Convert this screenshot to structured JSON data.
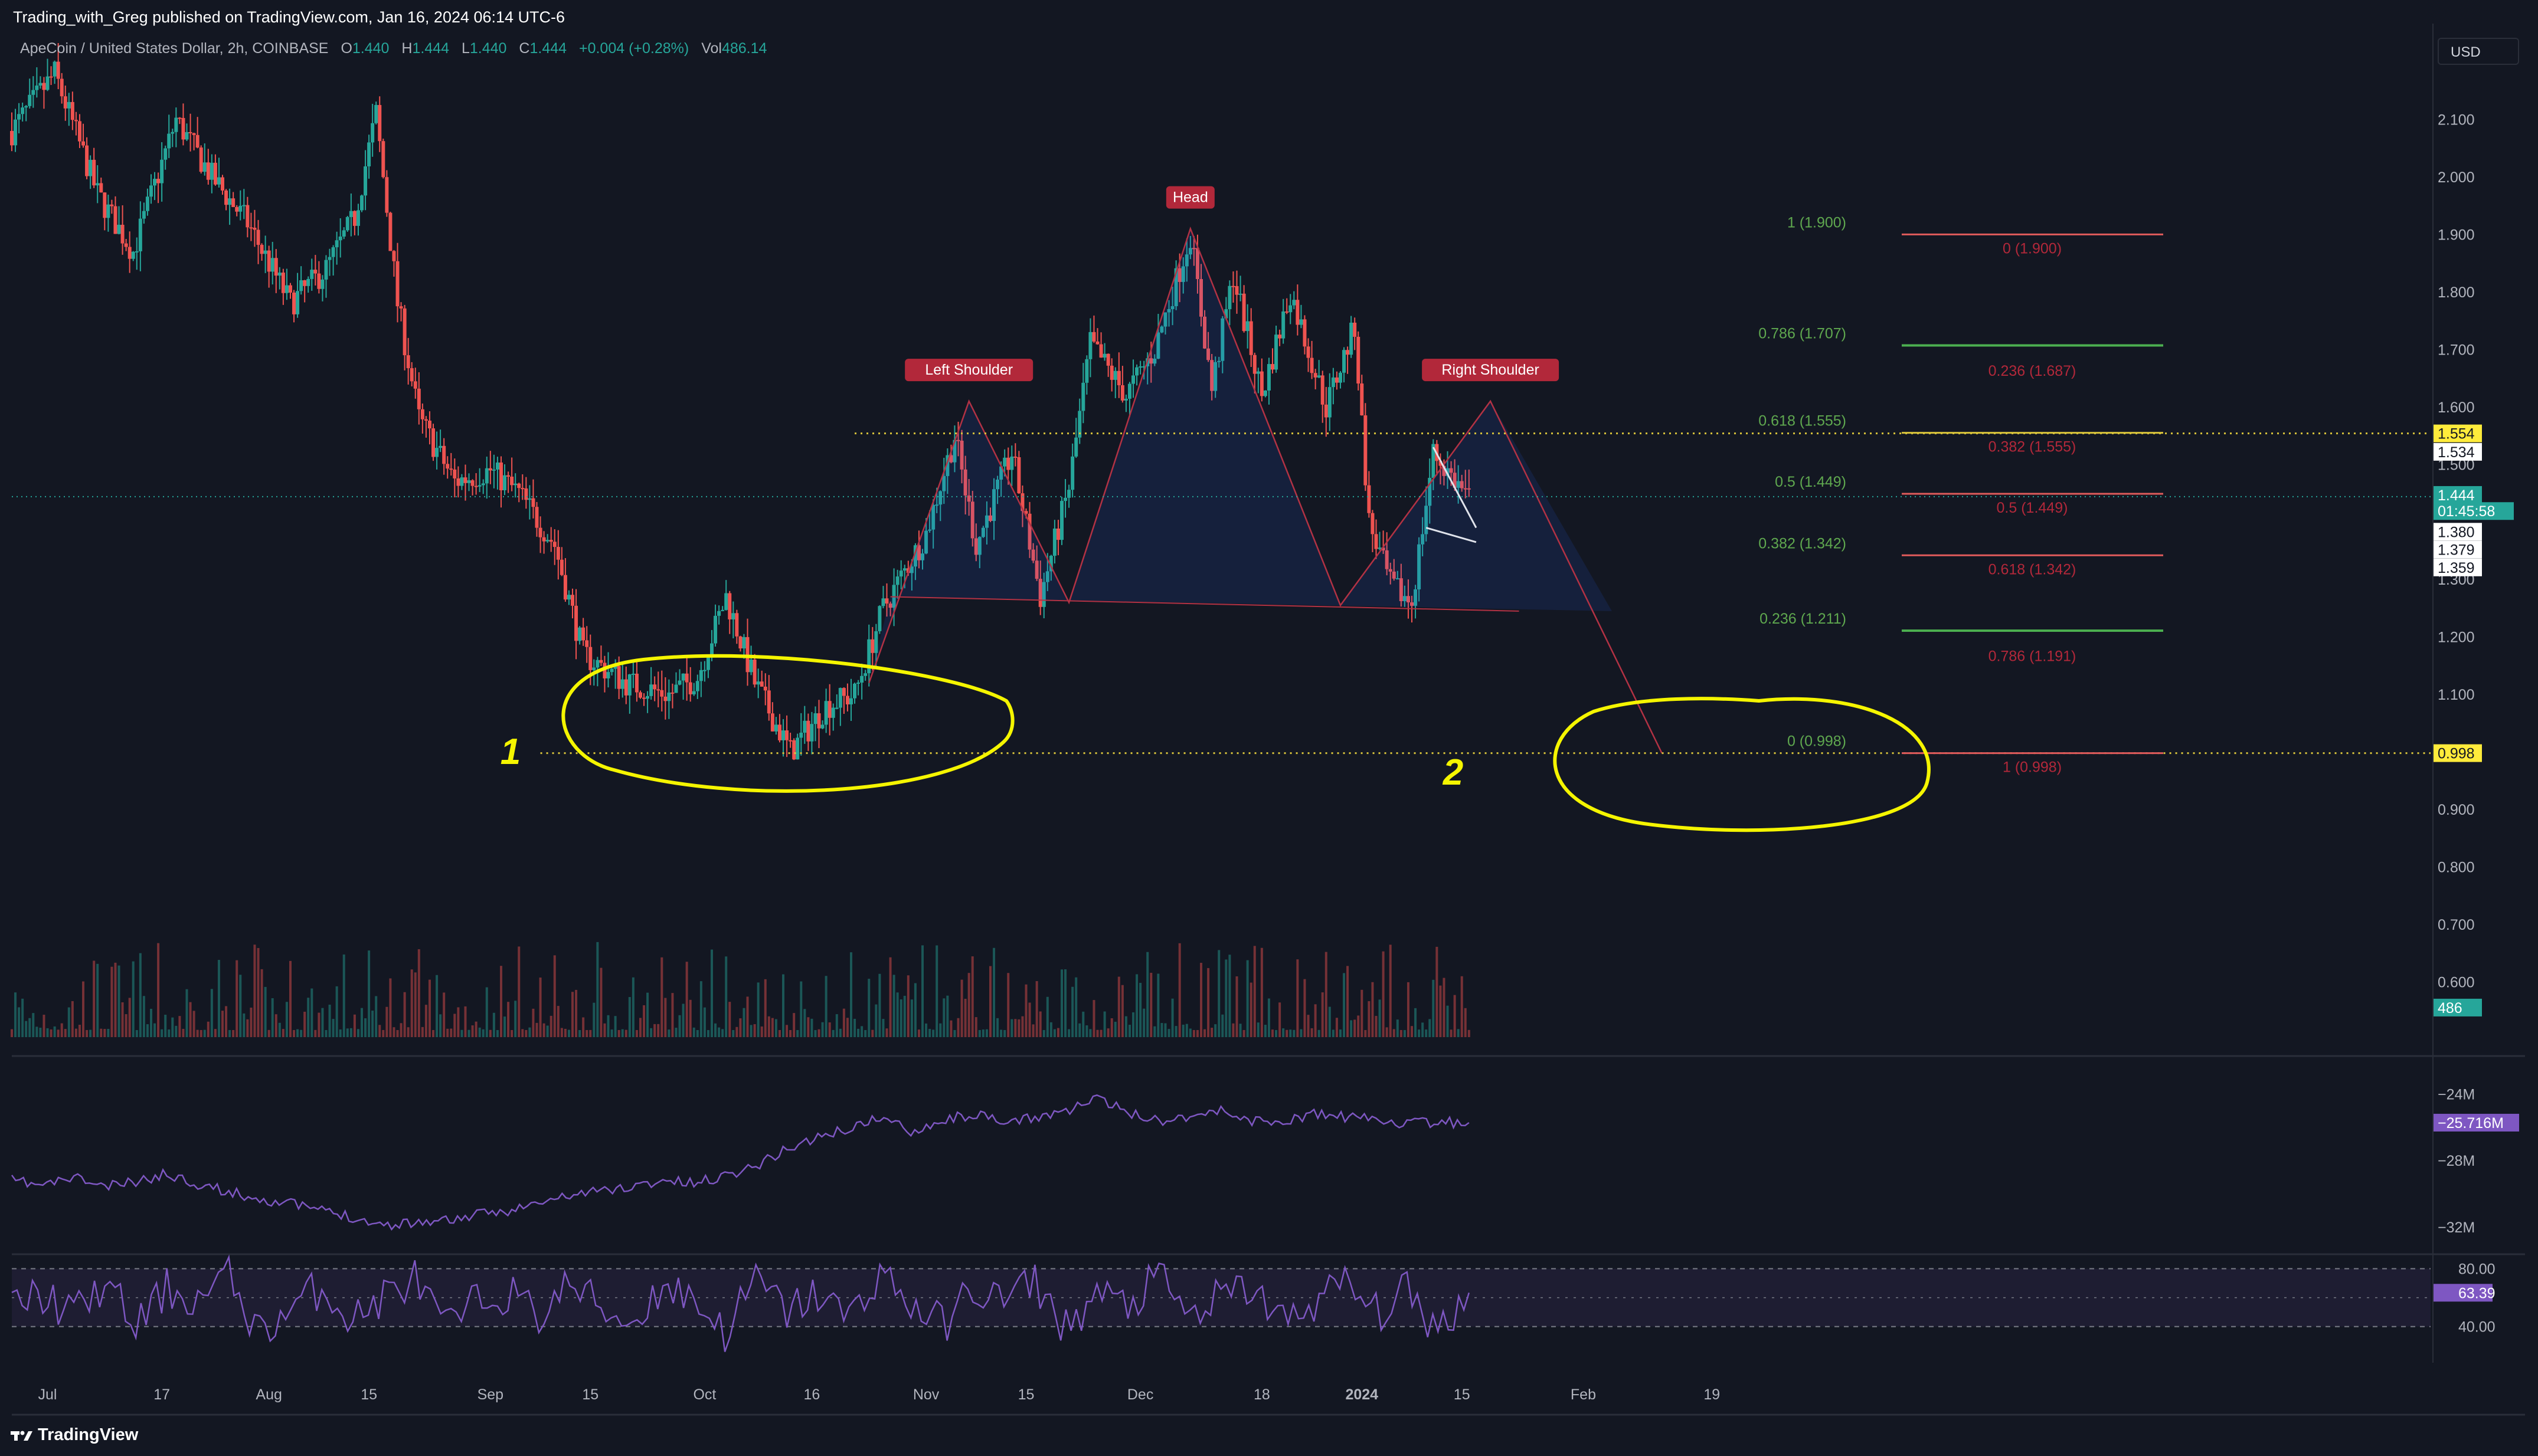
{
  "header": {
    "publisher_line": "Trading_with_Greg published on TradingView.com, Jan 16, 2024 06:14 UTC-6"
  },
  "legend": {
    "symbol": "ApeCoin / United States Dollar, 2h, COINBASE",
    "o_label": "O",
    "o_value": "1.440",
    "h_label": "H",
    "h_value": "1.444",
    "l_label": "L",
    "l_value": "1.440",
    "c_label": "C",
    "c_value": "1.444",
    "change": "+0.004 (+0.28%)",
    "vol_label": "Vol",
    "vol_value": "486.14"
  },
  "currency_button": "USD",
  "brand": "TradingView",
  "colors": {
    "background": "#131722",
    "up": "#26a69a",
    "down": "#ef5350",
    "indicator": "#7e57c2",
    "annotation": "#f5f500",
    "pattern_line": "#b23244",
    "fib_green": "#4caf50",
    "fib_red": "#e05b5b"
  },
  "chart_data": [
    {
      "type": "candlestick",
      "title": "ApeCoin / United States Dollar, 2h, COINBASE",
      "ylim": [
        0.5,
        2.2
      ],
      "y_ticks": [
        "2.100",
        "2.000",
        "1.900",
        "1.800",
        "1.700",
        "1.600",
        "1.500",
        "1.300",
        "1.200",
        "1.100",
        "0.900",
        "0.800",
        "0.700",
        "0.600"
      ],
      "x_ticks": [
        "Jul",
        "17",
        "Aug",
        "15",
        "Sep",
        "15",
        "Oct",
        "16",
        "Nov",
        "15",
        "Dec",
        "18",
        "2024",
        "15",
        "Feb",
        "19"
      ],
      "x_tick_dates": [
        "2023-07-01",
        "2023-07-17",
        "2023-08-01",
        "2023-08-15",
        "2023-09-01",
        "2023-09-15",
        "2023-10-01",
        "2023-10-16",
        "2023-11-01",
        "2023-11-15",
        "2023-12-01",
        "2023-12-18",
        "2024-01-01",
        "2024-01-15",
        "2024-02-01",
        "2024-02-19"
      ],
      "price_path": [
        {
          "date": "2023-06-26",
          "price": 2.08
        },
        {
          "date": "2023-07-02",
          "price": 2.18
        },
        {
          "date": "2023-07-08",
          "price": 1.97
        },
        {
          "date": "2023-07-13",
          "price": 1.87
        },
        {
          "date": "2023-07-19",
          "price": 2.1
        },
        {
          "date": "2023-07-24",
          "price": 2.0
        },
        {
          "date": "2023-07-29",
          "price": 1.92
        },
        {
          "date": "2023-08-04",
          "price": 1.78
        },
        {
          "date": "2023-08-09",
          "price": 1.84
        },
        {
          "date": "2023-08-13",
          "price": 1.93
        },
        {
          "date": "2023-08-16",
          "price": 2.11
        },
        {
          "date": "2023-08-19",
          "price": 1.78
        },
        {
          "date": "2023-08-22",
          "price": 1.58
        },
        {
          "date": "2023-08-27",
          "price": 1.47
        },
        {
          "date": "2023-09-01",
          "price": 1.49
        },
        {
          "date": "2023-09-05",
          "price": 1.45
        },
        {
          "date": "2023-09-10",
          "price": 1.36
        },
        {
          "date": "2023-09-14",
          "price": 1.17
        },
        {
          "date": "2023-09-20",
          "price": 1.12
        },
        {
          "date": "2023-09-26",
          "price": 1.1
        },
        {
          "date": "2023-09-30",
          "price": 1.13
        },
        {
          "date": "2023-10-04",
          "price": 1.27
        },
        {
          "date": "2023-10-08",
          "price": 1.12
        },
        {
          "date": "2023-10-13",
          "price": 1.0
        },
        {
          "date": "2023-10-18",
          "price": 1.08
        },
        {
          "date": "2023-10-22",
          "price": 1.1
        },
        {
          "date": "2023-10-26",
          "price": 1.25
        },
        {
          "date": "2023-11-01",
          "price": 1.38
        },
        {
          "date": "2023-11-05",
          "price": 1.55
        },
        {
          "date": "2023-11-08",
          "price": 1.36
        },
        {
          "date": "2023-11-13",
          "price": 1.52
        },
        {
          "date": "2023-11-17",
          "price": 1.27
        },
        {
          "date": "2023-11-21",
          "price": 1.46
        },
        {
          "date": "2023-11-24",
          "price": 1.71
        },
        {
          "date": "2023-11-29",
          "price": 1.62
        },
        {
          "date": "2023-12-03",
          "price": 1.7
        },
        {
          "date": "2023-12-08",
          "price": 1.9
        },
        {
          "date": "2023-12-11",
          "price": 1.63
        },
        {
          "date": "2023-12-14",
          "price": 1.83
        },
        {
          "date": "2023-12-18",
          "price": 1.62
        },
        {
          "date": "2023-12-22",
          "price": 1.8
        },
        {
          "date": "2023-12-27",
          "price": 1.6
        },
        {
          "date": "2023-12-31",
          "price": 1.74
        },
        {
          "date": "2024-01-02",
          "price": 1.4
        },
        {
          "date": "2024-01-05",
          "price": 1.29
        },
        {
          "date": "2024-01-08",
          "price": 1.26
        },
        {
          "date": "2024-01-11",
          "price": 1.52
        },
        {
          "date": "2024-01-16",
          "price": 1.44
        }
      ],
      "price_labels": [
        {
          "text": "1.554",
          "price": 1.554,
          "style": "yellow"
        },
        {
          "text": "1.534",
          "price": 1.522,
          "style": "white"
        },
        {
          "text": "1.444",
          "price": 1.447,
          "style": "green"
        },
        {
          "text": "01:45:58",
          "price": 1.419,
          "style": "green"
        },
        {
          "text": "1.380",
          "price": 1.383,
          "style": "white"
        },
        {
          "text": "1.379",
          "price": 1.352,
          "style": "white"
        },
        {
          "text": "1.359",
          "price": 1.321,
          "style": "white"
        },
        {
          "text": "0.998",
          "price": 0.998,
          "style": "yellow"
        },
        {
          "text": "486",
          "price": 0.5555,
          "style": "green"
        }
      ],
      "pattern": {
        "labels": [
          "Left Shoulder",
          "Head",
          "Right Shoulder"
        ],
        "points": [
          {
            "date": "2023-10-24",
            "price": 1.12
          },
          {
            "date": "2023-11-07",
            "price": 1.61
          },
          {
            "date": "2023-11-21",
            "price": 1.26
          },
          {
            "date": "2023-12-08",
            "price": 1.91
          },
          {
            "date": "2023-12-29",
            "price": 1.255
          },
          {
            "date": "2024-01-19",
            "price": 1.61
          },
          {
            "date": "2024-02-12",
            "price": 0.998
          }
        ],
        "neckline": [
          {
            "date": "2023-10-27",
            "price": 1.27
          },
          {
            "date": "2024-01-23",
            "price": 1.245
          }
        ]
      },
      "fib_left": [
        {
          "label": "1 (1.900)",
          "price": 1.9,
          "color": "red"
        },
        {
          "label": "0.786 (1.707)",
          "price": 1.707,
          "color": "green"
        },
        {
          "label": "0.618 (1.555)",
          "price": 1.555,
          "color": "yellow"
        },
        {
          "label": "0.5 (1.449)",
          "price": 1.449,
          "color": "red"
        },
        {
          "label": "0.382 (1.342)",
          "price": 1.342,
          "color": "red"
        },
        {
          "label": "0.236 (1.211)",
          "price": 1.211,
          "color": "green"
        },
        {
          "label": "0 (0.998)",
          "price": 0.998,
          "color": "red"
        }
      ],
      "fib_right": [
        {
          "label": "0 (1.900)",
          "price": 1.9
        },
        {
          "label": "0.236 (1.687)",
          "price": 1.687
        },
        {
          "label": "0.382 (1.555)",
          "price": 1.555
        },
        {
          "label": "0.5 (1.449)",
          "price": 1.449
        },
        {
          "label": "0.618 (1.342)",
          "price": 1.342
        },
        {
          "label": "0.786 (1.191)",
          "price": 1.191
        },
        {
          "label": "1 (0.998)",
          "price": 0.998
        }
      ],
      "dotted_levels": [
        {
          "price": 1.554,
          "from": "2023-10-22"
        },
        {
          "price": 0.998,
          "from": "2023-09-08"
        }
      ],
      "annotations": [
        "1",
        "2"
      ],
      "annotation_price": 0.98
    },
    {
      "type": "line",
      "series": [
        {
          "values": [
            -29.2,
            -29.5,
            -29.0,
            -29.6,
            -29.3,
            -28.8,
            -29.4,
            -29.9,
            -30.3,
            -30.6,
            -31.0,
            -31.4,
            -31.9,
            -31.7,
            -31.6,
            -31.3,
            -31.0,
            -30.6,
            -30.1,
            -29.8,
            -29.6,
            -29.2,
            -29.4,
            -28.9,
            -28.3,
            -27.3,
            -26.6,
            -26.1,
            -25.4,
            -26.2,
            -25.6,
            -25.2,
            -25.8,
            -25.4,
            -25.0,
            -24.3,
            -25.1,
            -25.6,
            -25.3,
            -25.0,
            -25.6,
            -25.7,
            -25.2,
            -25.4,
            -25.5,
            -25.8,
            -25.7,
            -25.72
          ]
        }
      ],
      "y_ticks": [
        "-24M",
        "-28M",
        "-32M"
      ],
      "ylim": [
        -33.5,
        -23.2
      ],
      "last_label": "-25.716M"
    },
    {
      "type": "line",
      "series": [
        {
          "values": [
            55,
            62,
            48,
            70,
            40,
            66,
            58,
            75,
            35,
            52,
            68,
            44,
            61,
            73,
            38,
            57,
            64,
            47,
            70,
            53,
            42,
            69,
            59,
            36,
            72,
            50,
            63,
            45,
            78,
            55,
            41,
            66,
            58,
            71,
            39,
            62,
            54,
            74,
            46,
            60,
            67,
            43,
            57,
            70,
            49,
            64,
            38,
            63.39
          ]
        }
      ],
      "y_ticks": [
        "80.00",
        "40.00"
      ],
      "ylim": [
        15,
        90
      ],
      "bands": [
        80,
        40
      ],
      "last_label": "63.39"
    }
  ]
}
